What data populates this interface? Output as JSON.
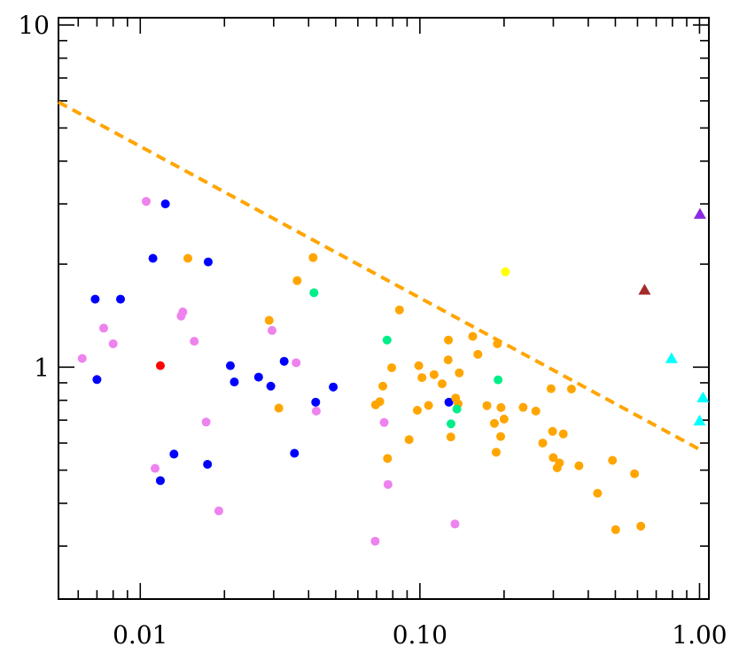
{
  "chart_data": {
    "type": "scatter",
    "title": "",
    "xlabel": "",
    "ylabel": "",
    "xscale": "log",
    "yscale": "log",
    "xlim": [
      0.0051,
      1.08
    ],
    "ylim": [
      0.21,
      10.5
    ],
    "x_tick_labels": [
      {
        "value": 0.01,
        "label": "0.01"
      },
      {
        "value": 0.1,
        "label": "0.10"
      },
      {
        "value": 1.0,
        "label": "1.00"
      }
    ],
    "y_tick_labels": [
      {
        "value": 1,
        "label": "1"
      },
      {
        "value": 10,
        "label": "10"
      }
    ],
    "grid": false,
    "legend": null,
    "reference_line": {
      "style": "dashed",
      "color": "#FFA500",
      "points": [
        [
          0.0051,
          5.95
        ],
        [
          1.0,
          0.575
        ]
      ]
    },
    "series": [
      {
        "marker": "circle",
        "color": "#0000FF",
        "points": [
          [
            0.0069,
            1.58
          ],
          [
            0.0085,
            1.58
          ],
          [
            0.007,
            0.92
          ],
          [
            0.0111,
            2.08
          ],
          [
            0.0123,
            3.0
          ],
          [
            0.0175,
            2.03
          ],
          [
            0.0132,
            0.557
          ],
          [
            0.0174,
            0.52
          ],
          [
            0.0118,
            0.466
          ],
          [
            0.021,
            1.01
          ],
          [
            0.0217,
            0.905
          ],
          [
            0.0265,
            0.935
          ],
          [
            0.0293,
            0.88
          ],
          [
            0.0327,
            1.04
          ],
          [
            0.0356,
            0.56
          ],
          [
            0.0424,
            0.79
          ],
          [
            0.049,
            0.875
          ],
          [
            0.127,
            0.79
          ]
        ]
      },
      {
        "marker": "circle",
        "color": "#EE82EE",
        "points": [
          [
            0.0062,
            1.06
          ],
          [
            0.0105,
            3.05
          ],
          [
            0.0074,
            1.3
          ],
          [
            0.008,
            1.17
          ],
          [
            0.0142,
            1.45
          ],
          [
            0.014,
            1.41
          ],
          [
            0.0156,
            1.19
          ],
          [
            0.0113,
            0.506
          ],
          [
            0.0172,
            0.691
          ],
          [
            0.0191,
            0.38
          ],
          [
            0.0296,
            1.28
          ],
          [
            0.0361,
            1.03
          ],
          [
            0.0426,
            0.744
          ],
          [
            0.0745,
            0.689
          ],
          [
            0.0769,
            0.454
          ],
          [
            0.0692,
            0.31
          ],
          [
            0.1335,
            0.348
          ]
        ]
      },
      {
        "marker": "circle",
        "color": "#FFA500",
        "points": [
          [
            0.0148,
            2.08
          ],
          [
            0.0289,
            1.37
          ],
          [
            0.0313,
            0.759
          ],
          [
            0.0364,
            1.79
          ],
          [
            0.0415,
            2.09
          ],
          [
            0.0694,
            0.776
          ],
          [
            0.0719,
            0.793
          ],
          [
            0.0737,
            0.88
          ],
          [
            0.0766,
            0.541
          ],
          [
            0.0793,
            0.996
          ],
          [
            0.0845,
            1.47
          ],
          [
            0.0915,
            0.614
          ],
          [
            0.0979,
            0.748
          ],
          [
            0.0991,
            1.01
          ],
          [
            0.1017,
            0.932
          ],
          [
            0.1074,
            0.773
          ],
          [
            0.1124,
            0.951
          ],
          [
            0.1201,
            0.894
          ],
          [
            0.1265,
            1.2
          ],
          [
            0.1262,
            1.05
          ],
          [
            0.129,
            0.625
          ],
          [
            0.1342,
            0.812
          ],
          [
            0.137,
            0.781
          ],
          [
            0.1383,
            0.962
          ],
          [
            0.1545,
            1.23
          ],
          [
            0.1612,
            1.09
          ],
          [
            0.1737,
            0.772
          ],
          [
            0.1847,
            0.685
          ],
          [
            0.1874,
            0.564
          ],
          [
            0.1893,
            1.17
          ],
          [
            0.195,
            0.762
          ],
          [
            0.1945,
            0.627
          ],
          [
            0.2,
            0.705
          ],
          [
            0.234,
            0.763
          ],
          [
            0.2598,
            0.744
          ],
          [
            0.275,
            0.6
          ],
          [
            0.2945,
            0.865
          ],
          [
            0.2982,
            0.649
          ],
          [
            0.2998,
            0.544
          ],
          [
            0.3097,
            0.508
          ],
          [
            0.3155,
            0.525
          ],
          [
            0.3257,
            0.638
          ],
          [
            0.3483,
            0.863
          ],
          [
            0.3706,
            0.515
          ],
          [
            0.4318,
            0.428
          ],
          [
            0.4882,
            0.534
          ],
          [
            0.5012,
            0.335
          ],
          [
            0.5856,
            0.488
          ],
          [
            0.6167,
            0.343
          ]
        ]
      },
      {
        "marker": "circle",
        "color": "#00EE88",
        "points": [
          [
            0.0418,
            1.65
          ],
          [
            0.0763,
            1.2
          ],
          [
            0.1292,
            0.683
          ],
          [
            0.1356,
            0.754
          ],
          [
            0.1904,
            0.918
          ]
        ]
      },
      {
        "marker": "circle",
        "color": "#FF0000",
        "points": [
          [
            0.0118,
            1.01
          ]
        ]
      },
      {
        "marker": "circle",
        "color": "#FFFF00",
        "points": [
          [
            0.2022,
            1.9
          ]
        ]
      },
      {
        "marker": "triangle",
        "color": "#A52A2A",
        "points": [
          [
            0.6361,
            1.68
          ]
        ]
      },
      {
        "marker": "triangle",
        "color": "#8A2BE2",
        "points": [
          [
            1.0035,
            2.8
          ]
        ]
      },
      {
        "marker": "triangle",
        "color": "#00FFFF",
        "points": [
          [
            0.7943,
            1.06
          ],
          [
            1.0287,
            0.814
          ],
          [
            1.0003,
            0.697
          ]
        ]
      }
    ]
  }
}
